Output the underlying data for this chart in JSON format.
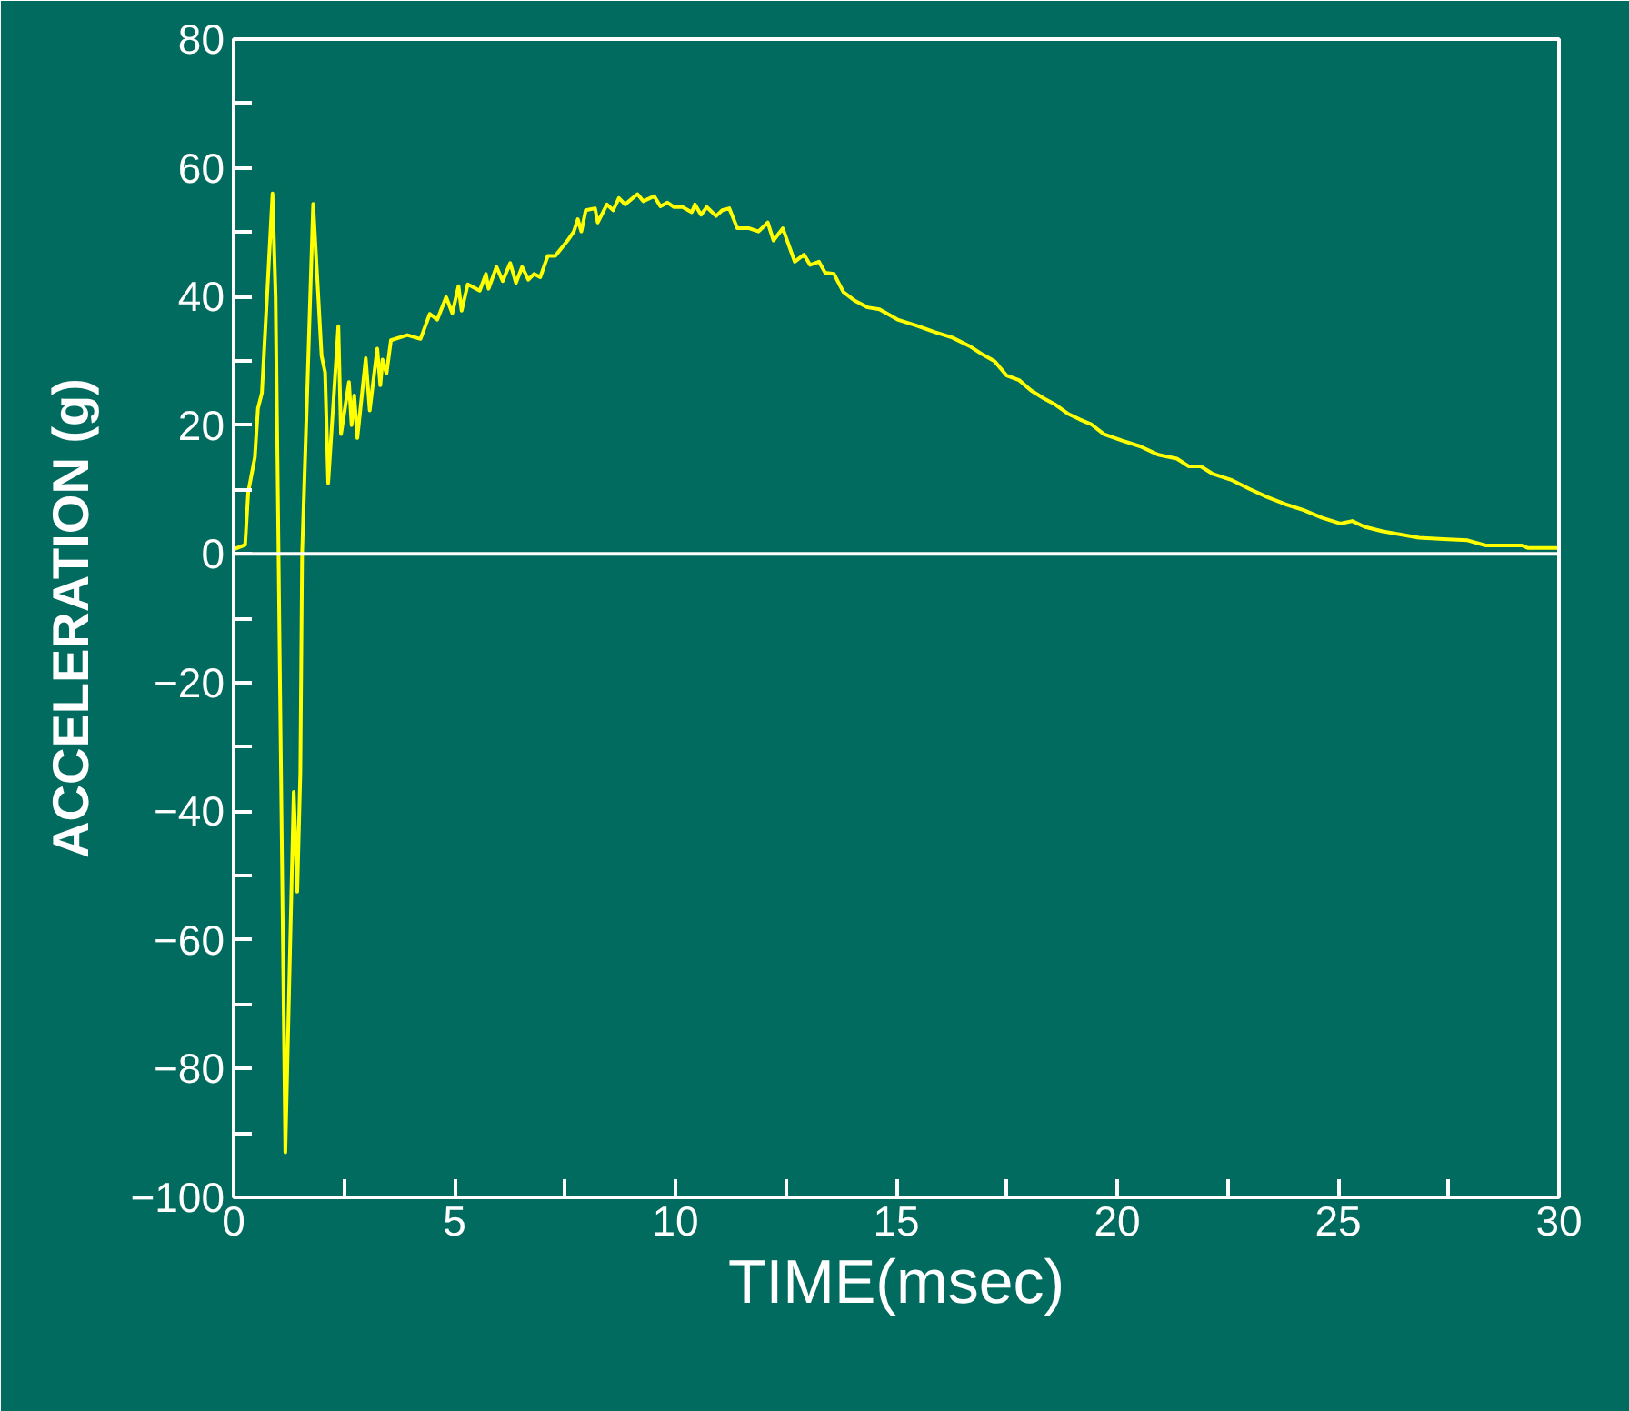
{
  "chart_data": {
    "type": "line",
    "xlabel": "TIME(msec)",
    "ylabel": "ACCELERATION (g)",
    "xlim": [
      0,
      30
    ],
    "ylim": [
      -100,
      80
    ],
    "xticks": [
      0,
      {
        "value": 2.5,
        "label": null
      },
      5,
      {
        "value": 7.5,
        "label": null
      },
      10,
      {
        "value": 12.5,
        "label": null
      },
      15,
      {
        "value": 17.5,
        "label": null
      },
      20,
      {
        "value": 22.5,
        "label": null
      },
      25,
      {
        "value": 27.5,
        "label": null
      },
      30
    ],
    "yticks": [
      -100,
      {
        "value": -90,
        "label": null
      },
      -80,
      {
        "value": -70,
        "label": null
      },
      -60,
      {
        "value": -50,
        "label": null
      },
      -40,
      {
        "value": -30,
        "label": null
      },
      -20,
      {
        "value": -10,
        "label": null
      },
      0,
      {
        "value": 10,
        "label": null
      },
      20,
      {
        "value": 30,
        "label": null
      },
      40,
      {
        "value": 50,
        "label": null
      },
      60,
      {
        "value": 70,
        "label": null
      },
      80
    ],
    "grid": false,
    "marker": "none",
    "line_style": "solid",
    "ref_lines": [
      {
        "axis": "y",
        "value": 0,
        "label": null,
        "color": "#ffffff"
      }
    ],
    "series": [
      {
        "color": "#ffff00",
        "x": [
          0,
          0.26,
          0.33,
          0.48,
          0.55,
          0.64,
          0.88,
          0.95,
          1.17,
          1.36,
          1.44,
          1.51,
          1.55,
          1.8,
          1.99,
          2.07,
          2.14,
          2.37,
          2.43,
          2.61,
          2.67,
          2.73,
          2.8,
          2.99,
          3.08,
          3.25,
          3.32,
          3.37,
          3.46,
          3.56,
          3.93,
          4.23,
          4.44,
          4.61,
          4.81,
          4.95,
          5.09,
          5.16,
          5.3,
          5.57,
          5.71,
          5.77,
          5.95,
          6.09,
          6.26,
          6.39,
          6.53,
          6.67,
          6.8,
          6.94,
          7.11,
          7.28,
          7.56,
          7.7,
          7.79,
          7.87,
          7.97,
          8.18,
          8.24,
          8.45,
          8.59,
          8.72,
          8.86,
          9.14,
          9.27,
          9.52,
          9.66,
          9.82,
          9.96,
          10.16,
          10.37,
          10.44,
          10.58,
          10.71,
          10.92,
          11.06,
          11.22,
          11.4,
          11.67,
          11.88,
          12.09,
          12.22,
          12.43,
          12.7,
          12.91,
          13.05,
          13.25,
          13.39,
          13.59,
          13.8,
          14.07,
          14.35,
          14.62,
          15.03,
          15.44,
          15.86,
          16.27,
          16.68,
          16.95,
          17.23,
          17.5,
          17.78,
          18.05,
          18.33,
          18.6,
          18.88,
          19.15,
          19.42,
          19.7,
          20.11,
          20.52,
          20.93,
          21.35,
          21.62,
          21.89,
          22.17,
          22.58,
          22.99,
          23.4,
          23.81,
          24.22,
          24.64,
          25.05,
          25.32,
          25.6,
          26.01,
          26.42,
          26.83,
          27.38,
          27.93,
          28.34,
          29.16,
          29.3,
          29.96
        ],
        "values": [
          0.7,
          1.4,
          9.6,
          15,
          22.6,
          25,
          56,
          40,
          -93,
          -37,
          -52.5,
          -34,
          0,
          54.4,
          30.8,
          28.2,
          11,
          35.4,
          18.6,
          26.7,
          20,
          24.6,
          18,
          30.4,
          22.3,
          31.9,
          26.2,
          30.2,
          28,
          33.2,
          34,
          33.4,
          37.3,
          36.4,
          39.9,
          37.4,
          41.6,
          37.8,
          41.9,
          40.9,
          43.5,
          41.2,
          44.6,
          42.4,
          45.2,
          42.1,
          44.6,
          42.6,
          43.5,
          43,
          46.3,
          46.3,
          48.7,
          50.1,
          52,
          50.1,
          53.4,
          53.7,
          51.5,
          54.3,
          53.4,
          55.3,
          54.3,
          55.9,
          54.8,
          55.6,
          54,
          54.6,
          53.9,
          53.9,
          53.1,
          54.3,
          52.7,
          53.9,
          52.5,
          53.4,
          53.7,
          50.6,
          50.6,
          50.1,
          51.5,
          48.7,
          50.6,
          45.4,
          46.5,
          44.9,
          45.4,
          43.7,
          43.5,
          40.7,
          39.3,
          38.3,
          38,
          36.4,
          35.5,
          34.5,
          33.6,
          32.2,
          31,
          29.9,
          27.7,
          27,
          25.4,
          24.2,
          23.2,
          21.8,
          20.9,
          20.1,
          18.6,
          17.6,
          16.7,
          15.4,
          14.8,
          13.6,
          13.6,
          12.4,
          11.5,
          10.1,
          8.8,
          7.7,
          6.8,
          5.6,
          4.7,
          5.1,
          4.2,
          3.5,
          3,
          2.5,
          2.3,
          2.1,
          1.3,
          1.3,
          0.9,
          0.9
        ]
      }
    ]
  }
}
